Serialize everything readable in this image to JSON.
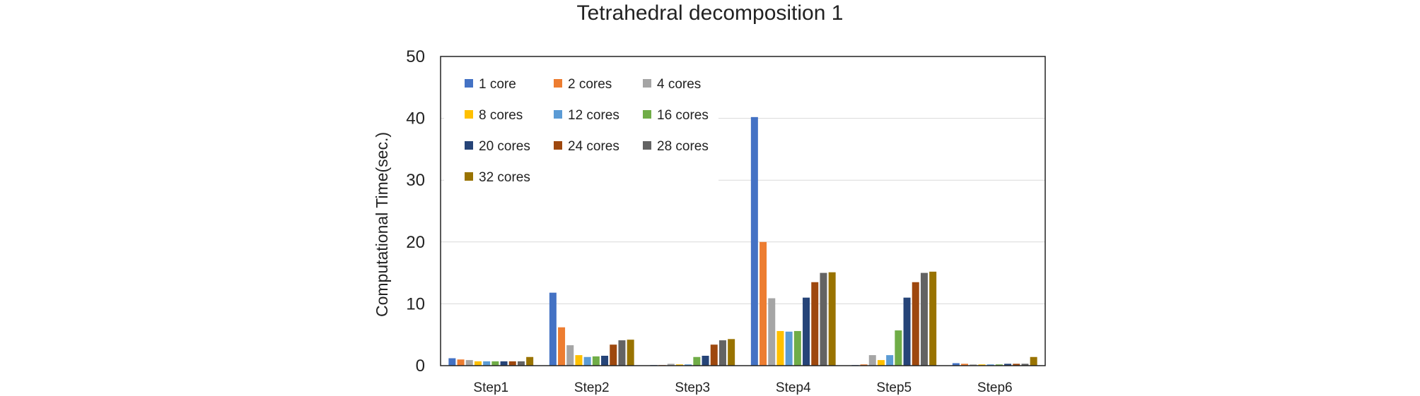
{
  "chart_data": {
    "type": "bar",
    "title": "Tetrahedral decomposition 1",
    "xlabel": "",
    "ylabel": "Computational Time(sec.)",
    "ylim": [
      0,
      50
    ],
    "yticks": [
      0,
      10,
      20,
      30,
      40,
      50
    ],
    "grid": true,
    "legend_position": "top-left",
    "categories": [
      "Step1",
      "Step2",
      "Step3",
      "Step4",
      "Step5",
      "Step6"
    ],
    "series": [
      {
        "name": "1 core",
        "color": "#4472C4",
        "values": [
          1.2,
          11.8,
          0.1,
          40.2,
          0.1,
          0.4
        ]
      },
      {
        "name": "2 cores",
        "color": "#ED7D31",
        "values": [
          1.0,
          6.2,
          0.1,
          20.0,
          0.2,
          0.3
        ]
      },
      {
        "name": "4 cores",
        "color": "#A5A5A5",
        "values": [
          0.9,
          3.3,
          0.3,
          10.9,
          1.7,
          0.2
        ]
      },
      {
        "name": "8 cores",
        "color": "#FFC000",
        "values": [
          0.7,
          1.7,
          0.2,
          5.6,
          0.9,
          0.2
        ]
      },
      {
        "name": "12 cores",
        "color": "#5B9BD5",
        "values": [
          0.7,
          1.4,
          0.2,
          5.5,
          1.7,
          0.2
        ]
      },
      {
        "name": "16 cores",
        "color": "#70AD47",
        "values": [
          0.7,
          1.5,
          1.4,
          5.6,
          5.7,
          0.2
        ]
      },
      {
        "name": "20 cores",
        "color": "#264478",
        "values": [
          0.7,
          1.6,
          1.6,
          11.0,
          11.0,
          0.3
        ]
      },
      {
        "name": "24 cores",
        "color": "#9E480E",
        "values": [
          0.7,
          3.4,
          3.4,
          13.5,
          13.5,
          0.3
        ]
      },
      {
        "name": "28 cores",
        "color": "#636363",
        "values": [
          0.7,
          4.1,
          4.1,
          15.0,
          15.0,
          0.3
        ]
      },
      {
        "name": "32 cores",
        "color": "#997300",
        "values": [
          1.4,
          4.2,
          4.3,
          15.1,
          15.2,
          1.4
        ]
      }
    ]
  }
}
